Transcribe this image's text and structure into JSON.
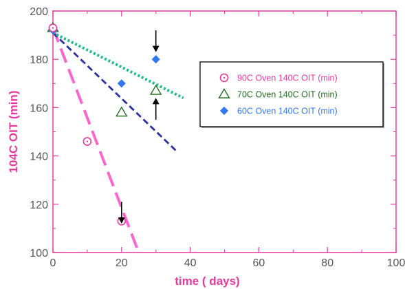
{
  "chart_data": {
    "type": "scatter",
    "title": "",
    "xlabel": "time ( days)",
    "ylabel": "104C OIT (min)",
    "xlim": [
      0,
      100
    ],
    "ylim": [
      100,
      200
    ],
    "x_ticks": [
      "0",
      "20",
      "40",
      "60",
      "80",
      "100"
    ],
    "y_ticks": [
      "100",
      "120",
      "140",
      "160",
      "180",
      "200"
    ],
    "grid": false,
    "legend_placement": "right",
    "series": [
      {
        "name": "90C Oven  140C OIT (min)",
        "marker": "circle-dot",
        "color": "#e6399b",
        "points": [
          [
            0,
            193
          ],
          [
            10,
            146
          ],
          [
            20,
            113
          ]
        ],
        "trend": {
          "style": "long-dash",
          "from": [
            0,
            193
          ],
          "to": [
            25,
            100
          ],
          "color": "#ff66cc"
        }
      },
      {
        "name": "70C Oven 140C OIT (min)",
        "marker": "triangle-open",
        "color": "#1f6b1f",
        "points": [
          [
            0,
            193
          ],
          [
            20,
            158
          ],
          [
            30,
            167
          ]
        ],
        "trend": {
          "style": "dash",
          "from": [
            0,
            191
          ],
          "to": [
            36,
            142
          ],
          "color": "#2a2f9e"
        }
      },
      {
        "name": "60C Oven 140C OIT (min)",
        "marker": "diamond-filled",
        "color": "#3377ee",
        "points": [
          [
            0,
            192
          ],
          [
            20,
            170
          ],
          [
            30,
            180
          ]
        ],
        "trend": {
          "style": "dot",
          "from": [
            0,
            191
          ],
          "to": [
            38,
            164
          ],
          "color": "#22bb88"
        }
      }
    ],
    "annotations": [
      {
        "type": "arrow-down",
        "x": 20,
        "y_tip": 112,
        "y_tail": 121
      },
      {
        "type": "arrow-down",
        "x": 30,
        "y_tip": 183,
        "y_tail": 192
      },
      {
        "type": "arrow-up",
        "x": 30,
        "y_tip": 164,
        "y_tail": 155
      }
    ],
    "colors": {
      "axis": "#e6399b",
      "axis_labels": "#e6399b",
      "tick_labels": "#555555",
      "legend_border": "#000000"
    }
  }
}
